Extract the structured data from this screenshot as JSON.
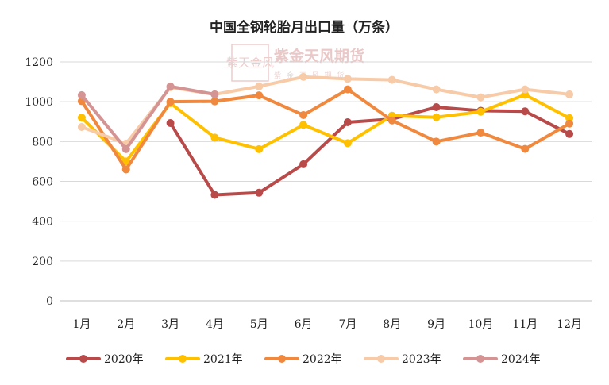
{
  "chart_data": {
    "type": "line",
    "title": "中国全钢轮胎月出口量（万条）",
    "categories": [
      "1月",
      "2月",
      "3月",
      "4月",
      "5月",
      "6月",
      "7月",
      "8月",
      "9月",
      "10月",
      "11月",
      "12月"
    ],
    "ylim": [
      0,
      1200
    ],
    "yticks": [
      0,
      200,
      400,
      600,
      800,
      1000,
      1200
    ],
    "grid": true,
    "legend_position": "bottom",
    "series": [
      {
        "name": "2020年",
        "color": "#b94a4a",
        "values": [
          null,
          null,
          893,
          532,
          543,
          686,
          897,
          913,
          973,
          955,
          952,
          838
        ]
      },
      {
        "name": "2021年",
        "color": "#ffc000",
        "values": [
          920,
          700,
          993,
          820,
          762,
          884,
          792,
          930,
          922,
          950,
          1035,
          918
        ]
      },
      {
        "name": "2022年",
        "color": "#f0883e",
        "values": [
          1003,
          660,
          1000,
          1002,
          1032,
          933,
          1062,
          906,
          800,
          845,
          763,
          890
        ]
      },
      {
        "name": "2023年",
        "color": "#f8cba8",
        "values": [
          873,
          790,
          1072,
          1037,
          1077,
          1125,
          1115,
          1110,
          1062,
          1022,
          1062,
          1037
        ]
      },
      {
        "name": "2024年",
        "color": "#d49494",
        "values": [
          1033,
          762,
          1077,
          1037,
          null,
          null,
          null,
          null,
          null,
          null,
          null,
          null
        ]
      }
    ]
  },
  "watermark": {
    "text": "紫金天风期货",
    "logo_text": "紫天金风",
    "subtitle_text": "紫 金 天 风 期 货"
  }
}
